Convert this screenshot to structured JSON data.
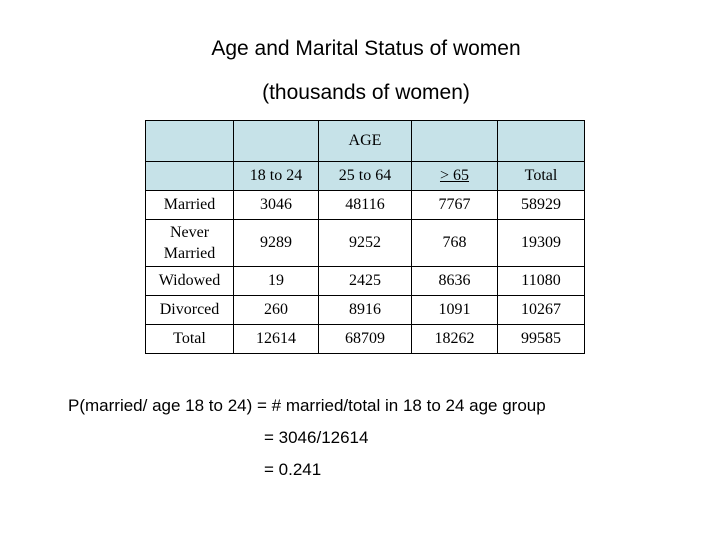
{
  "title_line1": "Age and Marital Status of women",
  "title_line2": "(thousands of women)",
  "table": {
    "group_header": "AGE",
    "columns": [
      "18 to 24",
      "25 to 64",
      "> 65",
      "Total"
    ],
    "rows": [
      {
        "label": "Married",
        "values": [
          "3046",
          "48116",
          "7767",
          "58929"
        ]
      },
      {
        "label_line1": "Never",
        "label_line2": "Married",
        "values": [
          "9289",
          "9252",
          "768",
          "19309"
        ]
      },
      {
        "label": "Widowed",
        "values": [
          "19",
          "2425",
          "8636",
          "11080"
        ]
      },
      {
        "label": "Divorced",
        "values": [
          "260",
          "8916",
          "1091",
          "10267"
        ]
      },
      {
        "label": "Total",
        "values": [
          "12614",
          "68709",
          "18262",
          "99585"
        ]
      }
    ]
  },
  "calculation": {
    "line1": "P(married/ age 18 to 24) = # married/total in 18 to 24 age group",
    "line2": "= 3046/12614",
    "line3": "= 0.241"
  }
}
